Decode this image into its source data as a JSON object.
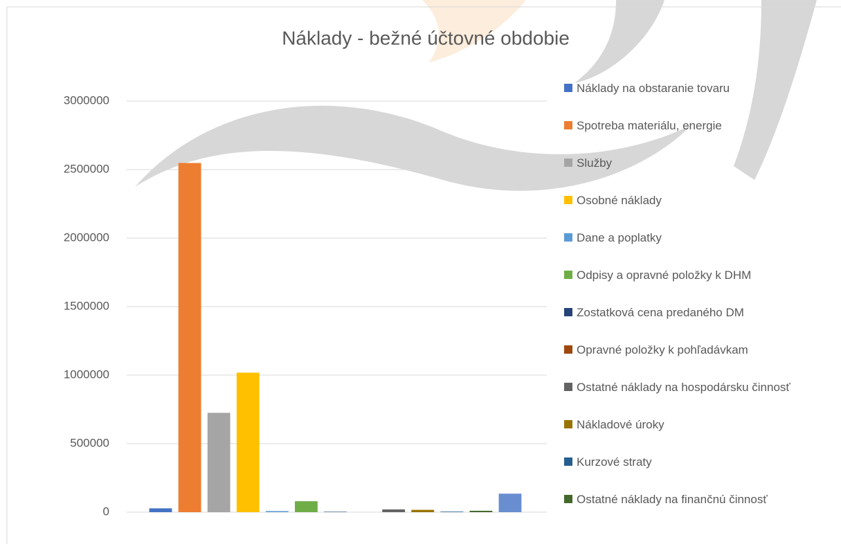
{
  "chart_data": {
    "type": "bar",
    "title": "Náklady - bežné účtovné obdobie",
    "series": [
      {
        "name": "Náklady na obstaranie tovaru",
        "color": "#4472c4",
        "values": [
          28000
        ]
      },
      {
        "name": "Spotreba materiálu, energie",
        "color": "#ed7d31",
        "values": [
          2548000
        ]
      },
      {
        "name": "Služby",
        "color": "#a5a5a5",
        "values": [
          725000
        ]
      },
      {
        "name": "Osobné náklady",
        "color": "#ffc000",
        "values": [
          1018000
        ]
      },
      {
        "name": "Dane a poplatky",
        "color": "#5b9bd5",
        "values": [
          8000
        ]
      },
      {
        "name": "Odpisy a opravné položky k DHM",
        "color": "#70ad47",
        "values": [
          80000
        ]
      },
      {
        "name": "Zostatková cena predaného DM",
        "color": "#264478",
        "values": [
          3000
        ]
      },
      {
        "name": "Opravné položky k pohľadávkam",
        "color": "#9e480e",
        "values": [
          0
        ]
      },
      {
        "name": "Ostatné náklady na hospodársku činnosť",
        "color": "#636363",
        "values": [
          20000
        ]
      },
      {
        "name": "Nákladové úroky",
        "color": "#997300",
        "values": [
          17000
        ]
      },
      {
        "name": "Kurzové straty",
        "color": "#255e91",
        "values": [
          4000
        ]
      },
      {
        "name": "Ostatné náklady na finančnú činnosť",
        "color": "#43682b",
        "values": [
          10000
        ]
      },
      {
        "name": null,
        "color": "#698ed0",
        "values": [
          135000
        ]
      }
    ],
    "ylim": [
      0,
      3000000
    ],
    "yticks": [
      0,
      500000,
      1000000,
      1500000,
      2000000,
      2500000,
      3000000
    ],
    "grid": true,
    "legend": "right"
  }
}
